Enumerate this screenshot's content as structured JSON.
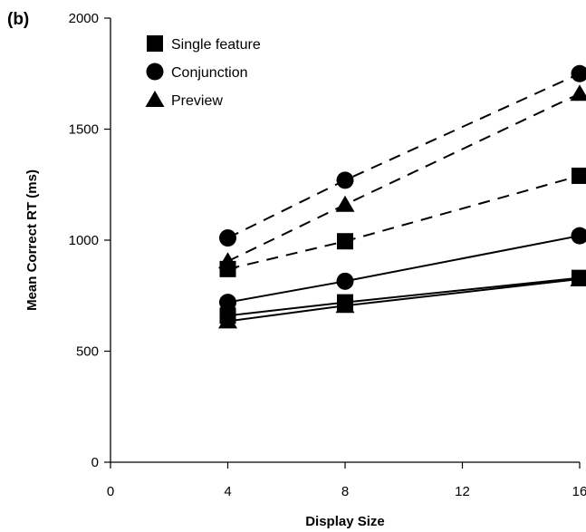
{
  "chart_data": {
    "type": "line",
    "panel_label": "(b)",
    "xlabel": "Display Size",
    "ylabel": "Mean Correct RT (ms)",
    "xlim": [
      0,
      16
    ],
    "ylim": [
      0,
      2000
    ],
    "xticks": [
      0,
      4,
      8,
      12,
      16
    ],
    "yticks": [
      0,
      500,
      1000,
      1500,
      2000
    ],
    "x": [
      4,
      8,
      16
    ],
    "legend": {
      "placement": "top-left",
      "entries": [
        {
          "name": "Single feature",
          "marker": "square"
        },
        {
          "name": "Conjunction",
          "marker": "circle"
        },
        {
          "name": "Preview",
          "marker": "triangle"
        }
      ]
    },
    "series": [
      {
        "condition": "Single feature",
        "marker": "square",
        "linestyle": "solid",
        "values": [
          660,
          720,
          830
        ]
      },
      {
        "condition": "Conjunction",
        "marker": "circle",
        "linestyle": "solid",
        "values": [
          720,
          815,
          1020
        ]
      },
      {
        "condition": "Preview",
        "marker": "triangle",
        "linestyle": "solid",
        "values": [
          635,
          705,
          825
        ]
      },
      {
        "condition": "Single feature",
        "marker": "square",
        "linestyle": "dashed",
        "values": [
          870,
          995,
          1290
        ]
      },
      {
        "condition": "Conjunction",
        "marker": "circle",
        "linestyle": "dashed",
        "values": [
          1010,
          1270,
          1750
        ]
      },
      {
        "condition": "Preview",
        "marker": "triangle",
        "linestyle": "dashed",
        "values": [
          905,
          1160,
          1660
        ]
      }
    ]
  }
}
